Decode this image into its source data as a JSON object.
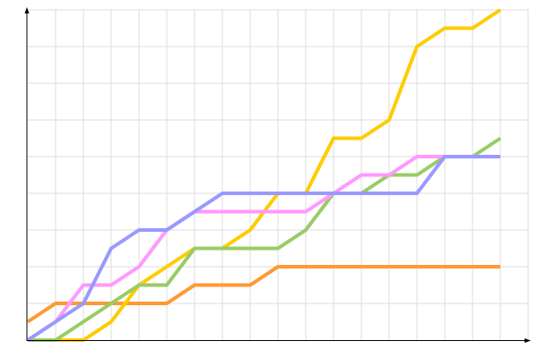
{
  "chart_data": {
    "type": "line",
    "title": "",
    "xlabel": "",
    "ylabel": "",
    "x": [
      0,
      1,
      2,
      3,
      4,
      5,
      6,
      7,
      8,
      9,
      10,
      11,
      12,
      13,
      14,
      15,
      16,
      17
    ],
    "xlim": [
      0,
      18
    ],
    "ylim": [
      0,
      9
    ],
    "grid": true,
    "legend": "none",
    "series": [
      {
        "color": "#ff9933",
        "values": [
          0.5,
          1,
          1,
          1,
          1,
          1,
          1.5,
          1.5,
          1.5,
          2,
          2,
          2,
          2,
          2,
          2,
          2,
          2,
          2
        ]
      },
      {
        "color": "#ffcc00",
        "values": [
          0,
          0,
          0,
          0.5,
          1.5,
          2,
          2.5,
          2.5,
          3,
          4,
          4,
          5.5,
          5.5,
          6,
          8,
          8.5,
          8.5,
          9
        ]
      },
      {
        "color": "#99cc66",
        "values": [
          0,
          0,
          0.5,
          1,
          1.5,
          1.5,
          2.5,
          2.5,
          2.5,
          2.5,
          3,
          4,
          4,
          4.5,
          4.5,
          5,
          5,
          5.5
        ]
      },
      {
        "color": "#ff99ff",
        "values": [
          0,
          0.5,
          1.5,
          1.5,
          2,
          3,
          3.5,
          3.5,
          3.5,
          3.5,
          3.5,
          4,
          4.5,
          4.5,
          5,
          5,
          5,
          5
        ]
      },
      {
        "color": "#9999ff",
        "values": [
          0,
          0.5,
          1,
          2.5,
          3,
          3,
          3.5,
          4,
          4,
          4,
          4,
          4,
          4,
          4,
          4,
          5,
          5,
          5
        ]
      }
    ]
  }
}
